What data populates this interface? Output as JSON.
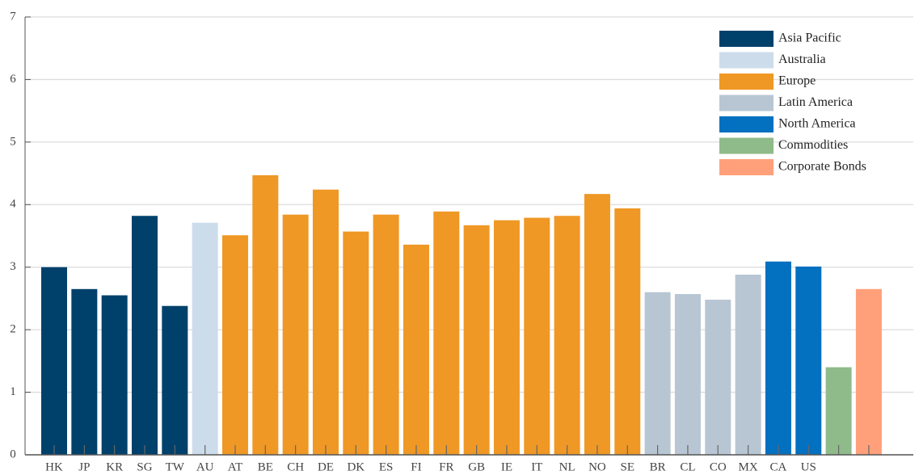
{
  "chart_data": {
    "type": "bar",
    "categories": [
      "HK",
      "JP",
      "KR",
      "SG",
      "TW",
      "AU",
      "AT",
      "BE",
      "CH",
      "DE",
      "DK",
      "ES",
      "FI",
      "FR",
      "GB",
      "IE",
      "IT",
      "NL",
      "NO",
      "SE",
      "BR",
      "CL",
      "CO",
      "MX",
      "CA",
      "US",
      null,
      null
    ],
    "series": [
      {
        "name": "Asia Pacific",
        "color": "#00416b",
        "values": [
          3.0,
          2.65,
          2.55,
          3.82,
          2.38,
          null,
          null,
          null,
          null,
          null,
          null,
          null,
          null,
          null,
          null,
          null,
          null,
          null,
          null,
          null,
          null,
          null,
          null,
          null,
          null,
          null,
          null,
          null
        ]
      },
      {
        "name": "Australia",
        "color": "#cddcea",
        "values": [
          null,
          null,
          null,
          null,
          null,
          3.71,
          null,
          null,
          null,
          null,
          null,
          null,
          null,
          null,
          null,
          null,
          null,
          null,
          null,
          null,
          null,
          null,
          null,
          null,
          null,
          null,
          null,
          null
        ]
      },
      {
        "name": "Europe",
        "color": "#ef9825",
        "values": [
          null,
          null,
          null,
          null,
          null,
          null,
          3.51,
          4.47,
          3.84,
          4.24,
          3.57,
          3.84,
          3.36,
          3.89,
          3.67,
          3.75,
          3.79,
          3.82,
          4.17,
          3.94,
          null,
          null,
          null,
          null,
          null,
          null,
          null,
          null
        ]
      },
      {
        "name": "Latin America",
        "color": "#b8c6d3",
        "values": [
          null,
          null,
          null,
          null,
          null,
          null,
          null,
          null,
          null,
          null,
          null,
          null,
          null,
          null,
          null,
          null,
          null,
          null,
          null,
          null,
          2.6,
          2.57,
          2.48,
          2.88,
          null,
          null,
          null,
          null
        ]
      },
      {
        "name": "North America",
        "color": "#0470c0",
        "values": [
          null,
          null,
          null,
          null,
          null,
          null,
          null,
          null,
          null,
          null,
          null,
          null,
          null,
          null,
          null,
          null,
          null,
          null,
          null,
          null,
          null,
          null,
          null,
          null,
          3.09,
          3.01,
          null,
          null
        ]
      },
      {
        "name": "Commodities",
        "color": "#8fbb8a",
        "values": [
          null,
          null,
          null,
          null,
          null,
          null,
          null,
          null,
          null,
          null,
          null,
          null,
          null,
          null,
          null,
          null,
          null,
          null,
          null,
          null,
          null,
          null,
          null,
          null,
          null,
          null,
          1.4,
          null
        ]
      },
      {
        "name": "Corporate Bonds",
        "color": "#ffa07a",
        "values": [
          null,
          null,
          null,
          null,
          null,
          null,
          null,
          null,
          null,
          null,
          null,
          null,
          null,
          null,
          null,
          null,
          null,
          null,
          null,
          null,
          null,
          null,
          null,
          null,
          null,
          null,
          null,
          2.65
        ]
      }
    ],
    "ylim": [
      0,
      7
    ],
    "yticks": [
      0,
      1,
      2,
      3,
      4,
      5,
      6,
      7
    ],
    "grid": true,
    "legend": "upper right"
  }
}
